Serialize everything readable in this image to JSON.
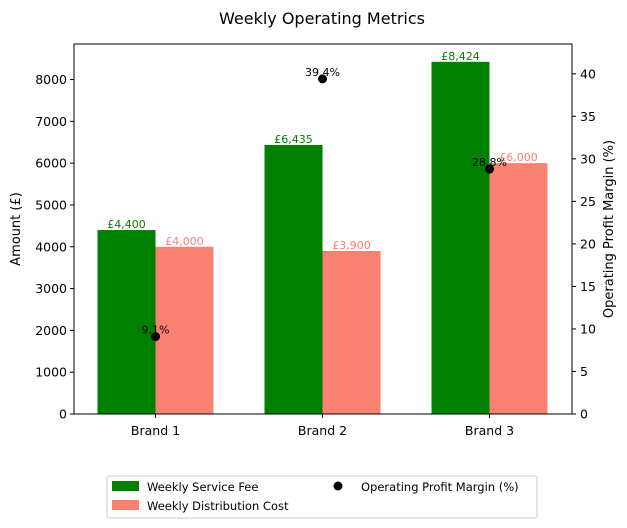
{
  "chart_data": {
    "type": "bar",
    "title": "Weekly Operating Metrics",
    "categories": [
      "Brand 1",
      "Brand 2",
      "Brand 3"
    ],
    "ylabel": "Amount (£)",
    "y2label": "Operating Profit Margin (%)",
    "ylim": [
      0,
      8850
    ],
    "y2lim": [
      0,
      43.5
    ],
    "yticks": [
      "0",
      "1000",
      "2000",
      "3000",
      "4000",
      "5000",
      "6000",
      "7000",
      "8000"
    ],
    "y2ticks": [
      "0",
      "5",
      "10",
      "15",
      "20",
      "25",
      "30",
      "35",
      "40"
    ],
    "series": [
      {
        "name": "Weekly Service Fee",
        "type": "bar",
        "axis": "left",
        "color": "#008000",
        "values": [
          4400,
          6435,
          8424
        ],
        "labels": [
          "£4,400",
          "£6,435",
          "£8,424"
        ]
      },
      {
        "name": "Weekly Distribution Cost",
        "type": "bar",
        "axis": "right-none",
        "color": "#fa8072",
        "values": [
          4000,
          3900,
          6000
        ],
        "labels": [
          "£4,000",
          "£3,900",
          "£6,000"
        ]
      },
      {
        "name": "Operating Profit Margin (%)",
        "type": "scatter",
        "axis": "right",
        "color": "#000000",
        "values": [
          9.1,
          39.4,
          28.8
        ],
        "labels": [
          "9.1%",
          "39.4%",
          "28.8%"
        ]
      }
    ],
    "legend_position": "bottom-center",
    "grid": false
  }
}
